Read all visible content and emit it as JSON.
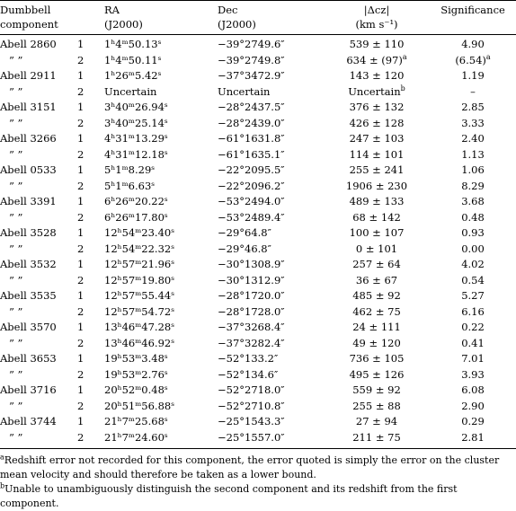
{
  "headers": {
    "component_line1": "Dumbbell",
    "component_line2": "component",
    "ra_line1": "RA",
    "ra_line2": "(J2000)",
    "dec_line1": "Dec",
    "dec_line2": "(J2000)",
    "dcz_line1": "|Δcz|",
    "dcz_line2": "(km s⁻¹)",
    "sig_line1": "Significance"
  },
  "rows": [
    {
      "name": "Abell 2860",
      "num": "1",
      "ra": "1ʰ4ᵐ50.13ˢ",
      "dec": "−39°2749.6″",
      "dcz": "539 ± 110",
      "sig": "4.90"
    },
    {
      "name": "”  ”",
      "num": "2",
      "ra": "1ʰ4ᵐ50.11ˢ",
      "dec": "−39°2749.8″",
      "dcz": "634 ± (97)",
      "dcz_note": "a",
      "sig": "(6.54)",
      "sig_note": "a"
    },
    {
      "name": "Abell 2911",
      "num": "1",
      "ra": "1ʰ26ᵐ5.42ˢ",
      "dec": "−37°3472.9″",
      "dcz": "143 ± 120",
      "sig": "1.19"
    },
    {
      "name": "”  ”",
      "num": "2",
      "ra": "Uncertain",
      "dec": "Uncertain",
      "dcz": "Uncertain",
      "dcz_note": "b",
      "sig": "–"
    },
    {
      "name": "Abell 3151",
      "num": "1",
      "ra": "3ʰ40ᵐ26.94ˢ",
      "dec": "−28°2437.5″",
      "dcz": "376 ± 132",
      "sig": "2.85"
    },
    {
      "name": "”  ”",
      "num": "2",
      "ra": "3ʰ40ᵐ25.14ˢ",
      "dec": "−28°2439.0″",
      "dcz": "426 ± 128",
      "sig": "3.33"
    },
    {
      "name": "Abell 3266",
      "num": "1",
      "ra": "4ʰ31ᵐ13.29ˢ",
      "dec": "−61°1631.8″",
      "dcz": "247 ± 103",
      "sig": "2.40"
    },
    {
      "name": "”  ”",
      "num": "2",
      "ra": "4ʰ31ᵐ12.18ˢ",
      "dec": "−61°1635.1″",
      "dcz": "114 ± 101",
      "sig": "1.13"
    },
    {
      "name": "Abell 0533",
      "num": "1",
      "ra": "5ʰ1ᵐ8.29ˢ",
      "dec": "−22°2095.5″",
      "dcz": "255 ± 241",
      "sig": "1.06"
    },
    {
      "name": "”  ”",
      "num": "2",
      "ra": "5ʰ1ᵐ6.63ˢ",
      "dec": "−22°2096.2″",
      "dcz": "1906 ± 230",
      "sig": "8.29"
    },
    {
      "name": "Abell 3391",
      "num": "1",
      "ra": "6ʰ26ᵐ20.22ˢ",
      "dec": "−53°2494.0″",
      "dcz": "489 ± 133",
      "sig": "3.68"
    },
    {
      "name": "”  ”",
      "num": "2",
      "ra": "6ʰ26ᵐ17.80ˢ",
      "dec": "−53°2489.4″",
      "dcz": "68 ± 142",
      "sig": "0.48"
    },
    {
      "name": "Abell 3528",
      "num": "1",
      "ra": "12ʰ54ᵐ23.40ˢ",
      "dec": "−29°64.8″",
      "dcz": "100 ± 107",
      "sig": "0.93"
    },
    {
      "name": "”  ”",
      "num": "2",
      "ra": "12ʰ54ᵐ22.32ˢ",
      "dec": "−29°46.8″",
      "dcz": "0 ± 101",
      "sig": "0.00"
    },
    {
      "name": "Abell 3532",
      "num": "1",
      "ra": "12ʰ57ᵐ21.96ˢ",
      "dec": "−30°1308.9″",
      "dcz": "257 ± 64",
      "sig": "4.02"
    },
    {
      "name": "”  ”",
      "num": "2",
      "ra": "12ʰ57ᵐ19.80ˢ",
      "dec": "−30°1312.9″",
      "dcz": "36 ± 67",
      "sig": "0.54"
    },
    {
      "name": "Abell 3535",
      "num": "1",
      "ra": "12ʰ57ᵐ55.44ˢ",
      "dec": "−28°1720.0″",
      "dcz": "485 ± 92",
      "sig": "5.27"
    },
    {
      "name": "”  ”",
      "num": "2",
      "ra": "12ʰ57ᵐ54.72ˢ",
      "dec": "−28°1728.0″",
      "dcz": "462 ± 75",
      "sig": "6.16"
    },
    {
      "name": "Abell 3570",
      "num": "1",
      "ra": "13ʰ46ᵐ47.28ˢ",
      "dec": "−37°3268.4″",
      "dcz": "24 ± 111",
      "sig": "0.22"
    },
    {
      "name": "”  ”",
      "num": "2",
      "ra": "13ʰ46ᵐ46.92ˢ",
      "dec": "−37°3282.4″",
      "dcz": "49 ± 120",
      "sig": "0.41"
    },
    {
      "name": "Abell 3653",
      "num": "1",
      "ra": "19ʰ53ᵐ3.48ˢ",
      "dec": "−52°133.2″",
      "dcz": "736 ± 105",
      "sig": "7.01"
    },
    {
      "name": "”  ”",
      "num": "2",
      "ra": "19ʰ53ᵐ2.76ˢ",
      "dec": "−52°134.6″",
      "dcz": "495 ± 126",
      "sig": "3.93"
    },
    {
      "name": "Abell 3716",
      "num": "1",
      "ra": "20ʰ52ᵐ0.48ˢ",
      "dec": "−52°2718.0″",
      "dcz": "559 ± 92",
      "sig": "6.08"
    },
    {
      "name": "”  ”",
      "num": "2",
      "ra": "20ʰ51ᵐ56.88ˢ",
      "dec": "−52°2710.8″",
      "dcz": "255 ± 88",
      "sig": "2.90"
    },
    {
      "name": "Abell 3744",
      "num": "1",
      "ra": "21ʰ7ᵐ25.68ˢ",
      "dec": "−25°1543.3″",
      "dcz": "27 ± 94",
      "sig": "0.29"
    },
    {
      "name": "”  ”",
      "num": "2",
      "ra": "21ʰ7ᵐ24.60ˢ",
      "dec": "−25°1557.0″",
      "dcz": "211 ± 75",
      "sig": "2.81"
    }
  ],
  "footnotes": {
    "a_marker": "a",
    "a_text": "Redshift error not recorded for this component, the error quoted is simply the error on the cluster mean velocity and should therefore be taken as a lower bound.",
    "b_marker": "b",
    "b_text": "Unable to unambiguously distinguish the second component and its redshift from the first component."
  }
}
